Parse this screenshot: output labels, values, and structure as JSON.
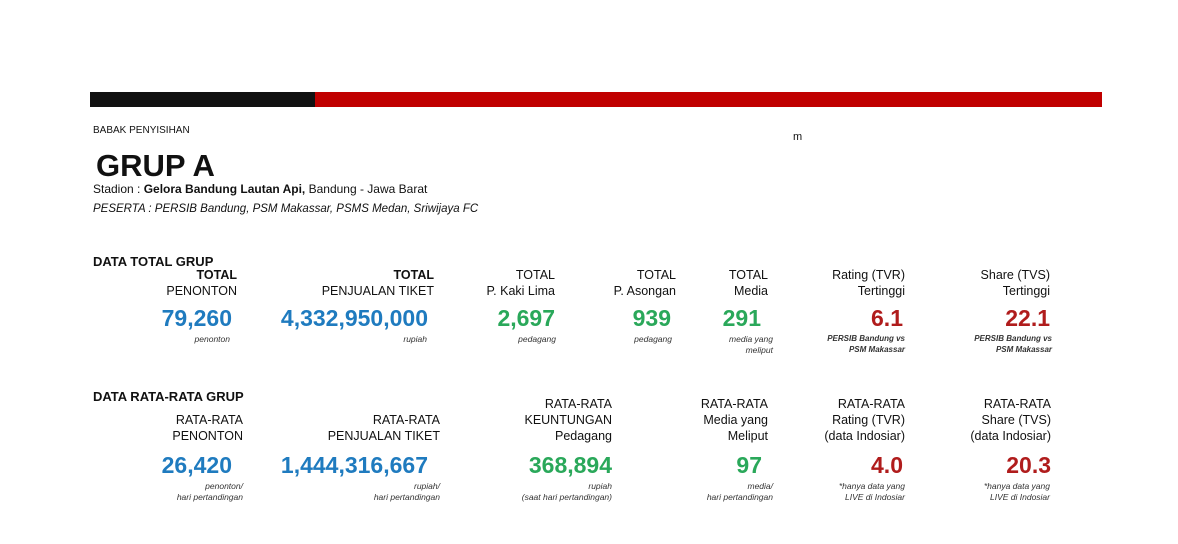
{
  "header": {
    "stage": "BABAK PENYISIHAN",
    "mark": "m",
    "title": "GRUP A",
    "stadium": {
      "label": "Stadion : ",
      "venue": "Gelora Bandung Lautan Api,",
      "city": " Bandung - Jawa Barat"
    },
    "participants": "PESERTA : PERSIB Bandung, PSM Makassar, PSMS Medan, Sriwijaya FC"
  },
  "sections": [
    {
      "title": "DATA TOTAL GRUP",
      "columns": [
        {
          "header": [
            "TOTAL",
            "PENONTON"
          ],
          "value": "79,260",
          "unit": [
            "penonton"
          ],
          "color": "#1f7bbf"
        },
        {
          "header": [
            "TOTAL",
            "PENJUALAN TIKET"
          ],
          "value": "4,332,950,000",
          "unit": [
            "rupiah"
          ],
          "color": "#1f7bbf"
        },
        {
          "header": [
            "TOTAL",
            "P. Kaki Lima"
          ],
          "value": "2,697",
          "unit": [
            "pedagang"
          ],
          "color": "#2aa85a"
        },
        {
          "header": [
            "TOTAL",
            "P. Asongan"
          ],
          "value": "939",
          "unit": [
            "pedagang"
          ],
          "color": "#2aa85a"
        },
        {
          "header": [
            "TOTAL",
            "Media"
          ],
          "value": "291",
          "unit": [
            "media yang",
            "meliput"
          ],
          "color": "#2aa85a"
        },
        {
          "header": [
            "Rating (TVR)",
            "Tertinggi"
          ],
          "value": "6.1",
          "note": [
            "PERSIB Bandung vs",
            "PSM Makassar"
          ],
          "color": "#b01c1c"
        },
        {
          "header": [
            "Share (TVS)",
            "Tertinggi"
          ],
          "value": "22.1",
          "note": [
            "PERSIB Bandung vs",
            "PSM Makassar"
          ],
          "color": "#b01c1c"
        }
      ]
    },
    {
      "title": "DATA RATA-RATA GRUP",
      "columns": [
        {
          "header": [
            "RATA-RATA",
            "PENONTON"
          ],
          "value": "26,420",
          "unit": [
            "penonton/",
            "hari pertandingan"
          ],
          "color": "#1f7bbf"
        },
        {
          "header": [
            "RATA-RATA",
            "PENJUALAN TIKET"
          ],
          "value": "1,444,316,667",
          "unit": [
            "rupiah/",
            "hari pertandingan"
          ],
          "color": "#1f7bbf"
        },
        {
          "header": [
            "RATA-RATA",
            "KEUNTUNGAN",
            "Pedagang"
          ],
          "value": "368,894",
          "unit": [
            "rupiah",
            "(saat hari pertandingan)"
          ],
          "color": "#2aa85a"
        },
        {
          "header": [
            "RATA-RATA",
            "Media yang",
            "Meliput"
          ],
          "value": "97",
          "unit": [
            "media/",
            "hari pertandingan"
          ],
          "color": "#2aa85a"
        },
        {
          "header": [
            "RATA-RATA",
            "Rating (TVR)",
            "(data Indosiar)"
          ],
          "value": "4.0",
          "unit": [
            "*hanya data yang",
            "LIVE di Indosiar"
          ],
          "color": "#b01c1c"
        },
        {
          "header": [
            "RATA-RATA",
            "Share (TVS)",
            "(data Indosiar)"
          ],
          "value": "20.3",
          "unit": [
            "*hanya data yang",
            "LIVE di Indosiar"
          ],
          "color": "#b01c1c"
        }
      ]
    }
  ]
}
